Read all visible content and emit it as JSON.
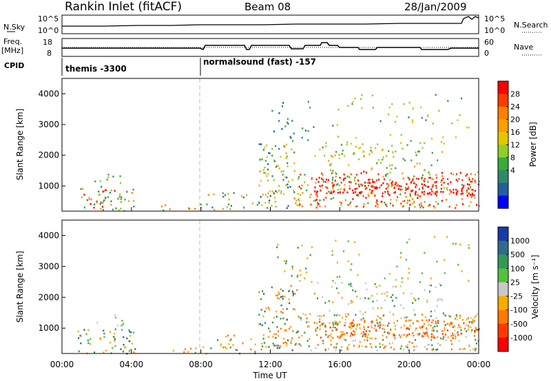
{
  "header": {
    "title": "Rankin Inlet (fitACF)",
    "beam": "Beam 08",
    "date": "28/Jan/2009"
  },
  "params": {
    "nsky_label": "N.Sky",
    "nsky_ticks": [
      "10^5",
      "10^0"
    ],
    "nsearch_label": "N.Search",
    "nsearch_ticks": [
      "10^5",
      "10^0"
    ],
    "freq_label_1": "Freq.",
    "freq_label_2": "[MHz]",
    "freq_ticks": [
      "18",
      "8"
    ],
    "nave_label": "Nave",
    "nave_ticks": [
      "60",
      "0"
    ],
    "cpid_label": "CPID",
    "cpid_segments": [
      "themis -3300",
      "normalsound (fast) -157"
    ]
  },
  "chart_data": [
    {
      "type": "heatmap",
      "name": "power",
      "ylabel": "Slant Range [km]",
      "yticks": [
        "4000",
        "3000",
        "2000",
        "1000"
      ],
      "yvalues": [
        4000,
        3000,
        2000,
        1000
      ],
      "ylim": [
        180,
        4500
      ],
      "xlim_hours": [
        0,
        24
      ],
      "colorbar_label": "Power [dB]",
      "colorbar_ticks": [
        "28",
        "24",
        "20",
        "16",
        "12",
        "8",
        "4"
      ],
      "colorbar_colors": [
        "#ff0000",
        "#ff3a00",
        "#ff8000",
        "#ffa000",
        "#e8c400",
        "#8ecf2a",
        "#3aaa3a",
        "#2e8a6a",
        "#2060a0",
        "#0000ff"
      ]
    },
    {
      "type": "heatmap",
      "name": "velocity",
      "ylabel": "Slant Range [km]",
      "yticks": [
        "4000",
        "3000",
        "2000",
        "1000"
      ],
      "yvalues": [
        4000,
        3000,
        2000,
        1000
      ],
      "ylim": [
        180,
        4500
      ],
      "xlim_hours": [
        0,
        24
      ],
      "xlabel": "Time UT",
      "xticks": [
        "00:00",
        "04:00",
        "08:00",
        "12:00",
        "16:00",
        "20:00",
        "00:00"
      ],
      "colorbar_label": "Velocity [m s⁻¹]",
      "colorbar_ticks": [
        "1000",
        "500",
        "100",
        "25",
        "-25",
        "-100",
        "-500",
        "-1000"
      ],
      "colorbar_colors": [
        "#1a3aa8",
        "#2f6d8c",
        "#2f9a58",
        "#52c23a",
        "#c8c8c8",
        "#ffaa00",
        "#ff7a00",
        "#ff3a00",
        "#ff0000"
      ]
    }
  ]
}
